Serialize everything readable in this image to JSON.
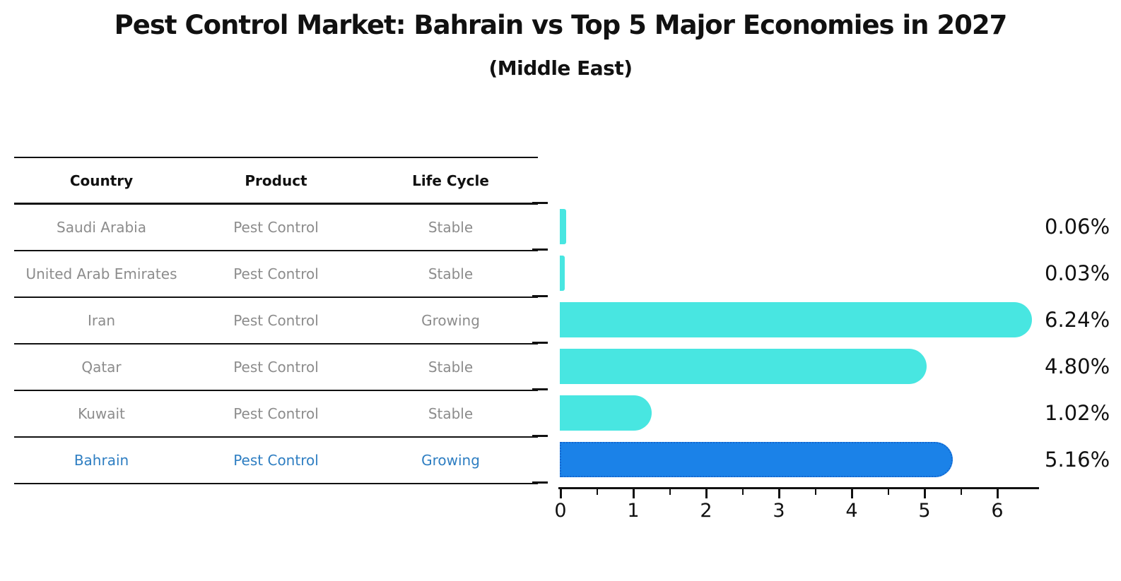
{
  "title": "Pest Control Market: Bahrain vs Top 5 Major Economies in 2027",
  "subtitle": "(Middle East)",
  "table": {
    "headers": [
      "Country",
      "Product",
      "Life Cycle"
    ],
    "rows": [
      {
        "country": "Saudi Arabia",
        "product": "Pest Control",
        "life_cycle": "Stable",
        "highlight": false
      },
      {
        "country": "United Arab Emirates",
        "product": "Pest Control",
        "life_cycle": "Stable",
        "highlight": false
      },
      {
        "country": "Iran",
        "product": "Pest Control",
        "life_cycle": "Growing",
        "highlight": false
      },
      {
        "country": "Qatar",
        "product": "Pest Control",
        "life_cycle": "Stable",
        "highlight": false
      },
      {
        "country": "Kuwait",
        "product": "Pest Control",
        "life_cycle": "Stable",
        "highlight": false
      },
      {
        "country": "Bahrain",
        "product": "Pest Control",
        "life_cycle": "Growing",
        "highlight": true
      }
    ]
  },
  "chart_data": {
    "type": "bar",
    "orientation": "horizontal",
    "title": "Pest Control Market: Bahrain vs Top 5 Major Economies in 2027",
    "subtitle": "(Middle East)",
    "categories": [
      "Saudi Arabia",
      "United Arab Emirates",
      "Iran",
      "Qatar",
      "Kuwait",
      "Bahrain"
    ],
    "values": [
      0.06,
      0.03,
      6.24,
      4.8,
      1.02,
      5.16
    ],
    "value_labels": [
      "0.06%",
      "0.03%",
      "6.24%",
      "4.80%",
      "1.02%",
      "5.16%"
    ],
    "highlight_index": 5,
    "xlabel": "",
    "ylabel": "",
    "xlim": [
      0,
      6.5
    ],
    "x_ticks": [
      "0",
      "1",
      "2",
      "3",
      "4",
      "5",
      "6"
    ],
    "grid": false,
    "legend": false
  },
  "colors": {
    "bar": "#48e6e1",
    "highlight_bar": "#1b82e8",
    "highlight_bar_border": "#1467cf",
    "row_text": "#8c8c8c",
    "highlight_text": "#2e7ec2",
    "ink": "#111111"
  }
}
